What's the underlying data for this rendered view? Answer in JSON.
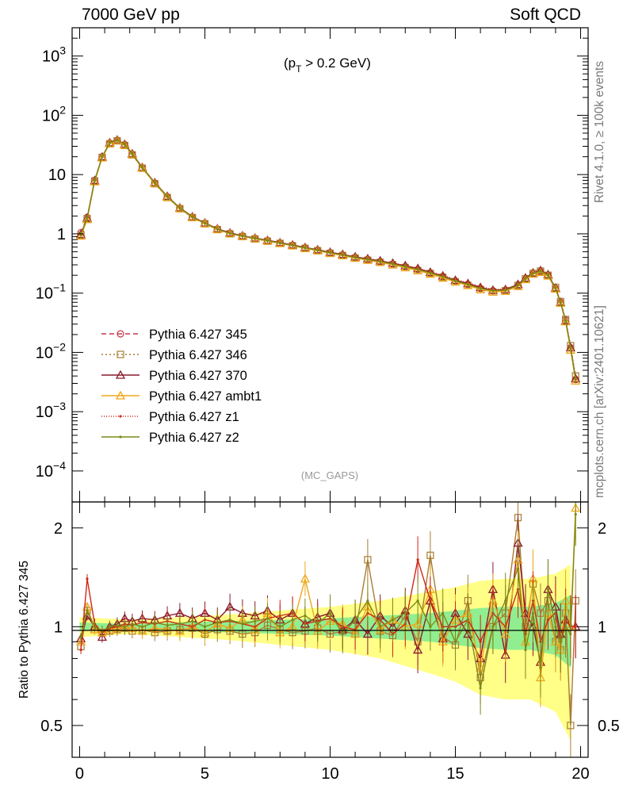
{
  "header": {
    "left": "7000 GeV pp",
    "right": "Soft QCD"
  },
  "side_labels": {
    "rivet": "Rivet 4.1.0, ≥ 100k events",
    "mcplots": "mcplots.cern.ch [arXiv:2401.10621]"
  },
  "annotations": {
    "cut_main": "(p",
    "cut_sub": "T",
    "cut_rest": " > 0.2 GeV)",
    "watermark": "(MC_GAPS)"
  },
  "colors": {
    "ref_band_inner": "#90ee90",
    "ref_band_outer": "#ffff88",
    "frame": "#000000"
  },
  "chart_data": [
    {
      "type": "line",
      "panel": "main",
      "yscale": "log",
      "xlim": [
        -0.3,
        20.3
      ],
      "ylim": [
        3e-05,
        3000
      ],
      "xlabel": "",
      "ylabel": "",
      "y_tick_labels": [
        "10^-4",
        "10^-3",
        "10^-2",
        "10^-1",
        "1",
        "10",
        "10^2",
        "10^3"
      ],
      "y_tick_values": [
        0.0001,
        0.001,
        0.01,
        0.1,
        1,
        10,
        100,
        1000
      ],
      "x": [
        0.05,
        0.3,
        0.6,
        0.9,
        1.2,
        1.5,
        1.8,
        2.1,
        2.5,
        3.0,
        3.5,
        4.0,
        4.5,
        5.0,
        5.5,
        6.0,
        6.5,
        7.0,
        7.5,
        8.0,
        8.5,
        9.0,
        9.5,
        10.0,
        10.5,
        11.0,
        11.5,
        12.0,
        12.5,
        13.0,
        13.5,
        14.0,
        14.5,
        15.0,
        15.5,
        16.0,
        16.5,
        17.0,
        17.5,
        17.8,
        18.1,
        18.4,
        18.7,
        19.0,
        19.2,
        19.4,
        19.6,
        19.8
      ],
      "series": [
        {
          "name": "Pythia 6.427 345",
          "color": "#c0394a",
          "dash": "6,4",
          "marker": "circle",
          "values": [
            1.05,
            1.9,
            8.0,
            20,
            34,
            38,
            32,
            22,
            13,
            7.2,
            4.2,
            2.7,
            1.9,
            1.5,
            1.2,
            1.02,
            0.92,
            0.84,
            0.77,
            0.7,
            0.64,
            0.58,
            0.53,
            0.48,
            0.44,
            0.4,
            0.37,
            0.34,
            0.31,
            0.28,
            0.25,
            0.22,
            0.19,
            0.16,
            0.14,
            0.12,
            0.11,
            0.11,
            0.13,
            0.17,
            0.21,
            0.23,
            0.2,
            0.12,
            0.07,
            0.035,
            0.012,
            0.0035
          ]
        },
        {
          "name": "Pythia 6.427 346",
          "color": "#a87d34",
          "dash": "2,3",
          "marker": "square",
          "values": [
            0.95,
            1.8,
            7.8,
            19.5,
            33,
            37,
            31,
            21.5,
            12.8,
            7.0,
            4.1,
            2.65,
            1.88,
            1.48,
            1.18,
            1.0,
            0.9,
            0.82,
            0.75,
            0.69,
            0.63,
            0.57,
            0.52,
            0.47,
            0.43,
            0.39,
            0.36,
            0.33,
            0.3,
            0.27,
            0.24,
            0.215,
            0.185,
            0.155,
            0.135,
            0.115,
            0.105,
            0.11,
            0.135,
            0.175,
            0.215,
            0.235,
            0.2,
            0.125,
            0.072,
            0.036,
            0.013,
            0.004
          ]
        },
        {
          "name": "Pythia 6.427 370",
          "color": "#8b1a2c",
          "dash": "",
          "marker": "triangle",
          "values": [
            0.98,
            1.85,
            7.9,
            19.8,
            34.5,
            38.5,
            32.5,
            22.5,
            13.2,
            7.3,
            4.3,
            2.75,
            1.95,
            1.53,
            1.22,
            1.04,
            0.93,
            0.85,
            0.78,
            0.71,
            0.65,
            0.59,
            0.54,
            0.49,
            0.45,
            0.41,
            0.38,
            0.35,
            0.32,
            0.29,
            0.26,
            0.225,
            0.195,
            0.165,
            0.145,
            0.125,
            0.112,
            0.115,
            0.14,
            0.18,
            0.22,
            0.24,
            0.205,
            0.122,
            0.07,
            0.034,
            0.012,
            0.0036
          ]
        },
        {
          "name": "Pythia 6.427 ambt1",
          "color": "#f0a818",
          "dash": "",
          "marker": "triangle",
          "values": [
            0.92,
            1.75,
            7.6,
            19.2,
            33.5,
            37.5,
            31.5,
            21.8,
            12.9,
            7.1,
            4.15,
            2.68,
            1.9,
            1.49,
            1.19,
            1.01,
            0.91,
            0.83,
            0.76,
            0.69,
            0.63,
            0.57,
            0.52,
            0.47,
            0.43,
            0.39,
            0.36,
            0.33,
            0.3,
            0.27,
            0.24,
            0.21,
            0.18,
            0.155,
            0.135,
            0.115,
            0.105,
            0.108,
            0.13,
            0.17,
            0.21,
            0.225,
            0.195,
            0.118,
            0.068,
            0.033,
            0.011,
            0.0033
          ]
        },
        {
          "name": "Pythia 6.427 z1",
          "color": "#d02818",
          "dash": "1,2",
          "marker": "dot",
          "values": [
            1.0,
            1.9,
            8.1,
            20.2,
            34.8,
            38.8,
            32.8,
            22.8,
            13.4,
            7.4,
            4.3,
            2.75,
            1.95,
            1.52,
            1.21,
            1.03,
            0.93,
            0.85,
            0.78,
            0.71,
            0.65,
            0.59,
            0.54,
            0.49,
            0.45,
            0.41,
            0.38,
            0.35,
            0.32,
            0.29,
            0.26,
            0.23,
            0.2,
            0.17,
            0.15,
            0.13,
            0.115,
            0.118,
            0.14,
            0.18,
            0.22,
            0.24,
            0.205,
            0.122,
            0.07,
            0.034,
            0.012,
            0.0036
          ]
        },
        {
          "name": "Pythia 6.427 z2",
          "color": "#7d8a18",
          "dash": "",
          "marker": "dot",
          "values": [
            0.97,
            1.85,
            7.9,
            19.9,
            34.2,
            38.2,
            32.2,
            22.2,
            13.1,
            7.25,
            4.25,
            2.72,
            1.92,
            1.51,
            1.2,
            1.02,
            0.92,
            0.84,
            0.77,
            0.7,
            0.64,
            0.58,
            0.53,
            0.48,
            0.44,
            0.4,
            0.37,
            0.34,
            0.31,
            0.28,
            0.25,
            0.22,
            0.19,
            0.16,
            0.14,
            0.12,
            0.11,
            0.112,
            0.135,
            0.175,
            0.215,
            0.235,
            0.2,
            0.12,
            0.069,
            0.034,
            0.012,
            0.0035
          ]
        }
      ]
    },
    {
      "type": "line",
      "panel": "ratio",
      "yscale": "log",
      "ylim": [
        0.4,
        2.4
      ],
      "ylabel": "Ratio to Pythia 6.427 345",
      "y_tick_labels": [
        "0.5",
        "1",
        "2"
      ],
      "y_tick_values": [
        0.5,
        1,
        2
      ],
      "x_tick_labels": [
        "0",
        "5",
        "10",
        "15",
        "20"
      ],
      "x_tick_values": [
        0,
        5,
        10,
        15,
        20
      ],
      "band_x": [
        0,
        2,
        4,
        6,
        8,
        10,
        12,
        14,
        15,
        16,
        17,
        18,
        19,
        19.6
      ],
      "band_inner": [
        0.03,
        0.02,
        0.03,
        0.04,
        0.05,
        0.06,
        0.08,
        0.1,
        0.12,
        0.14,
        0.15,
        0.15,
        0.18,
        0.25
      ],
      "band_outer": [
        0.07,
        0.05,
        0.07,
        0.09,
        0.12,
        0.15,
        0.2,
        0.28,
        0.32,
        0.38,
        0.4,
        0.4,
        0.45,
        0.55
      ],
      "series": [
        {
          "name": "Pythia 6.427 346",
          "color": "#a87d34",
          "marker": "square",
          "values": [
            0.87,
            1.12,
            0.98,
            0.96,
            0.97,
            0.98,
            0.99,
            0.97,
            0.98,
            0.96,
            0.97,
            0.98,
            0.99,
            0.95,
            0.98,
            0.97,
            0.95,
            0.96,
            1.01,
            0.98,
            0.96,
            0.97,
            0.99,
            0.95,
            0.97,
            0.95,
            1.6,
            0.97,
            0.94,
            1.08,
            0.9,
            1.65,
            0.93,
            0.88,
            1.2,
            0.7,
            1.0,
            1.1,
            2.15,
            1.0,
            1.35,
            1.1,
            1.2,
            0.9,
            0.85,
            1.1,
            0.5,
            1.2
          ]
        },
        {
          "name": "Pythia 6.427 370",
          "color": "#8b1a2c",
          "marker": "triangle",
          "values": [
            0.92,
            1.08,
            1.0,
            0.93,
            1.0,
            1.02,
            1.06,
            1.04,
            1.06,
            1.05,
            1.08,
            1.1,
            1.06,
            1.1,
            1.05,
            1.15,
            1.1,
            1.08,
            1.12,
            1.05,
            1.1,
            1.02,
            1.07,
            1.1,
            0.98,
            1.05,
            0.95,
            1.08,
            1.0,
            1.12,
            0.85,
            1.2,
            0.92,
            1.1,
            0.95,
            0.8,
            1.3,
            0.82,
            1.8,
            1.1,
            1.0,
            0.78,
            1.3,
            1.15,
            0.95,
            1.05,
            1.0,
            1.0
          ]
        },
        {
          "name": "Pythia 6.427 ambt1",
          "color": "#f0a818",
          "marker": "triangle",
          "values": [
            0.9,
            1.15,
            0.98,
            0.96,
            0.98,
            0.99,
            1.0,
            0.99,
            0.97,
            0.99,
            0.98,
            0.97,
            1.0,
            0.96,
            1.02,
            0.99,
            1.05,
            0.98,
            1.1,
            0.96,
            1.0,
            1.4,
            0.97,
            1.04,
            1.02,
            0.95,
            1.15,
            0.98,
            1.05,
            1.0,
            1.02,
            1.3,
            0.9,
            1.05,
            1.1,
            0.75,
            1.2,
            0.95,
            1.6,
            0.9,
            1.4,
            0.7,
            1.1,
            0.9,
            0.85,
            1.2,
            1.0,
            2.3
          ]
        },
        {
          "name": "Pythia 6.427 z1",
          "color": "#d02818",
          "marker": "dot",
          "values": [
            0.85,
            1.4,
            1.02,
            0.96,
            0.99,
            1.0,
            1.02,
            1.01,
            1.03,
            1.02,
            1.04,
            1.02,
            1.0,
            1.05,
            1.03,
            1.04,
            1.02,
            1.0,
            1.06,
            1.08,
            1.1,
            1.02,
            1.04,
            1.06,
            1.0,
            0.98,
            1.1,
            1.05,
            0.95,
            1.02,
            1.6,
            1.2,
            1.0,
            1.0,
            1.05,
            0.9,
            1.1,
            1.0,
            1.3,
            0.95,
            1.2,
            0.9,
            1.05,
            1.1,
            0.9,
            1.05,
            1.0,
            1.0
          ]
        },
        {
          "name": "Pythia 6.427 z2",
          "color": "#7d8a18",
          "marker": "dot",
          "values": [
            0.93,
            1.12,
            1.0,
            0.97,
            1.0,
            1.01,
            1.0,
            1.02,
            1.0,
            1.03,
            1.01,
            1.02,
            1.04,
            1.0,
            1.03,
            1.05,
            1.02,
            1.04,
            1.06,
            1.0,
            1.05,
            1.08,
            1.02,
            1.1,
            0.95,
            1.05,
            1.2,
            1.0,
            1.05,
            1.1,
            1.2,
            1.0,
            1.1,
            0.9,
            1.05,
            0.65,
            1.0,
            1.2,
            1.5,
            0.85,
            1.1,
            0.75,
            1.3,
            1.0,
            0.9,
            1.0,
            0.95,
            2.2
          ]
        }
      ]
    }
  ]
}
